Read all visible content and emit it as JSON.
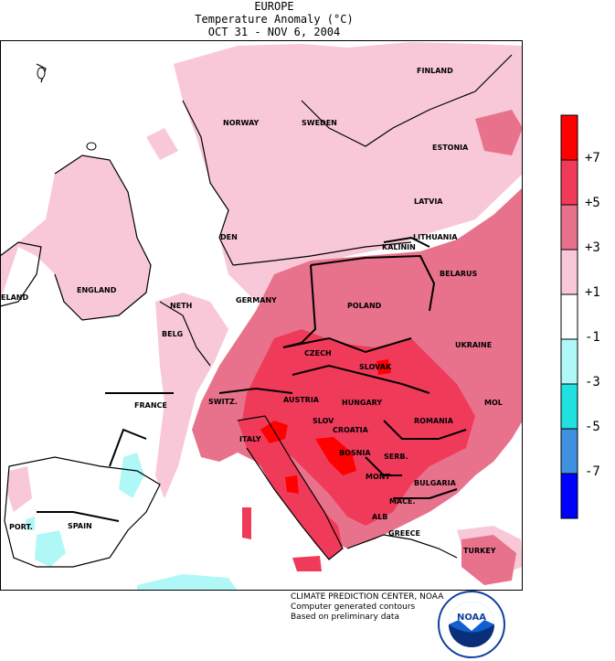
{
  "title": {
    "region": "EUROPE",
    "subtitle": "Temperature Anomaly (°C)",
    "dates": "OCT 31  -  NOV  6, 2004"
  },
  "legend": {
    "ticks": [
      "+7",
      "+5",
      "+3",
      "+1",
      "-1",
      "-3",
      "-5",
      "-7"
    ],
    "colors": [
      "#ff0000",
      "#f03a5a",
      "#e8728c",
      "#f8c8d8",
      "#ffffff",
      "#b0f8f8",
      "#20e0e0",
      "#4090e0",
      "#0000ff"
    ]
  },
  "countries": {
    "finland": "FINLAND",
    "norway": "NORWAY",
    "sweden": "SWEDEN",
    "estonia": "ESTONIA",
    "latvia": "LATVIA",
    "lithuania": "LITHUANIA",
    "kalinin": "KALININ",
    "den": "DEN",
    "belarus": "BELARUS",
    "ireland": "ELAND",
    "england": "ENGLAND",
    "neth": "NETH",
    "germany": "GERMANY",
    "poland": "POLAND",
    "belg": "BELG",
    "czech": "CZECH",
    "slovak": "SLOVAK",
    "ukraine": "UKRAINE",
    "france": "FRANCE",
    "switz": "SWITZ.",
    "austria": "AUSTRIA",
    "hungary": "HUNGARY",
    "mol": "MOL",
    "slov": "SLOV",
    "romania": "ROMANIA",
    "croatia": "CROATIA",
    "italy": "ITALY",
    "bosnia": "BOSNIA",
    "serb": "SERB.",
    "mont": "MONT",
    "bulgaria": "BULGARIA",
    "mace": "MACE.",
    "port": "PORT.",
    "spain": "SPAIN",
    "alb": "ALB",
    "greece": "GREECE",
    "turkey": "TURKEY"
  },
  "credits": {
    "line1": "CLIMATE PREDICTION CENTER, NOAA",
    "line2": "Computer generated contours",
    "line3": "Based on preliminary data",
    "logo_text": "NOAA"
  }
}
